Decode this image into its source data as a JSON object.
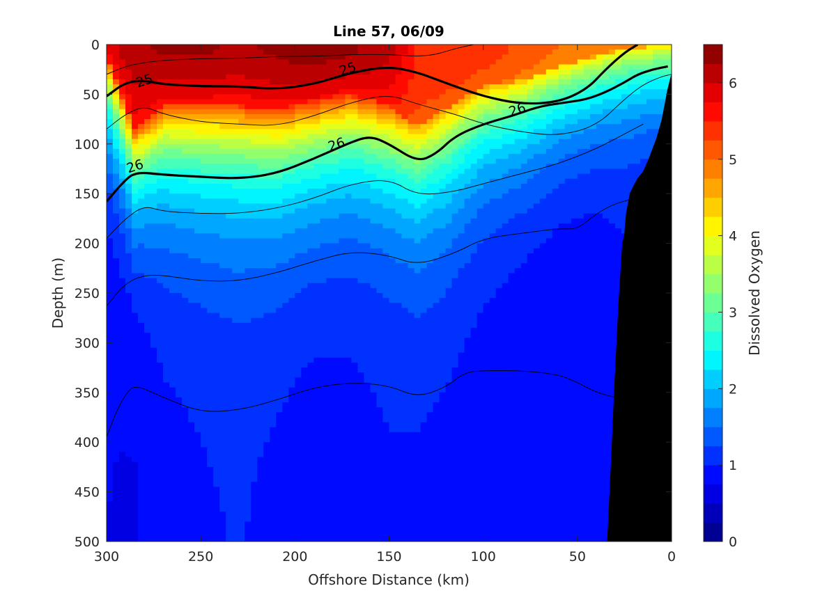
{
  "chart_data": {
    "type": "heatmap",
    "subtype": "filled-contour-section",
    "title": "Line 57, 06/09",
    "xlabel": "Offshore Distance (km)",
    "ylabel": "Depth (m)",
    "xlim": [
      300,
      0
    ],
    "ylim": [
      0,
      500
    ],
    "x_reversed": true,
    "y_reversed": true,
    "x_ticks": [
      300,
      250,
      200,
      150,
      100,
      50,
      0
    ],
    "y_ticks": [
      0,
      50,
      100,
      150,
      200,
      250,
      300,
      350,
      400,
      450,
      500
    ],
    "colorbar": {
      "label": "Dissolved Oxygen",
      "range": [
        0,
        6.5
      ],
      "ticks": [
        0,
        1,
        2,
        3,
        4,
        5,
        6
      ],
      "colormap": "jet",
      "level_step": 0.25
    },
    "oxygen_field": {
      "x": [
        300,
        285,
        270,
        250,
        230,
        210,
        190,
        170,
        150,
        135,
        120,
        100,
        80,
        60,
        40,
        25,
        10,
        0
      ],
      "z": [
        0,
        25,
        50,
        75,
        100,
        125,
        150,
        175,
        200,
        225,
        250,
        275,
        300,
        325,
        350,
        375,
        400,
        425,
        450,
        475,
        500
      ],
      "surface_oxygen": [
        5.9,
        6.2,
        6.3,
        6.3,
        6.2,
        6.3,
        6.4,
        6.3,
        6.1,
        5.5,
        5.5,
        5.4,
        5.2,
        5.0,
        4.9,
        4.8,
        4.8,
        4.8
      ],
      "oxycline_depth": [
        12,
        85,
        60,
        60,
        62,
        65,
        56,
        50,
        62,
        82,
        65,
        42,
        36,
        22,
        12,
        6,
        2,
        2
      ],
      "oxycline_scale": [
        55,
        60,
        65,
        68,
        70,
        70,
        68,
        66,
        66,
        70,
        70,
        62,
        58,
        55,
        50,
        48,
        45,
        45
      ],
      "deep_oxygen": [
        0.75,
        0.72,
        0.9,
        0.95,
        1.0,
        0.92,
        0.85,
        0.88,
        0.95,
        0.93,
        0.9,
        0.85,
        0.8,
        0.75,
        0.8,
        0.9,
        0.9,
        0.9
      ]
    },
    "density_contours": [
      {
        "sigma": 24.5,
        "x": [
          300,
          290,
          280,
          270,
          250,
          230,
          210,
          190,
          170,
          150,
          135,
          125,
          115,
          105
        ],
        "depth": [
          30,
          22,
          18,
          16,
          14,
          14,
          12,
          12,
          10,
          10,
          12,
          10,
          4,
          0
        ],
        "bold": false
      },
      {
        "sigma": 25,
        "labels_at": [
          [
            280,
            36
          ],
          [
            172,
            24
          ]
        ],
        "x": [
          300,
          290,
          280,
          270,
          250,
          230,
          210,
          190,
          170,
          150,
          135,
          125,
          115,
          100,
          80,
          60,
          45,
          35,
          25,
          18
        ],
        "depth": [
          52,
          38,
          36,
          40,
          42,
          42,
          45,
          40,
          28,
          22,
          28,
          35,
          42,
          52,
          60,
          58,
          45,
          25,
          8,
          0
        ],
        "bold": true
      },
      {
        "sigma": 25.5,
        "x": [
          300,
          290,
          280,
          270,
          250,
          230,
          210,
          190,
          170,
          150,
          135,
          115,
          100,
          80,
          60,
          40,
          25,
          15,
          5,
          0
        ],
        "depth": [
          85,
          70,
          62,
          70,
          78,
          80,
          82,
          72,
          58,
          50,
          60,
          70,
          80,
          88,
          92,
          82,
          55,
          40,
          32,
          30
        ],
        "bold": false
      },
      {
        "sigma": 26,
        "labels_at": [
          [
            285,
            122
          ],
          [
            178,
            100
          ],
          [
            82,
            65
          ]
        ],
        "x": [
          300,
          292,
          285,
          270,
          250,
          230,
          210,
          190,
          170,
          160,
          150,
          135,
          125,
          115,
          100,
          85,
          70,
          55,
          45,
          35,
          25,
          18,
          10,
          2
        ],
        "depth": [
          158,
          140,
          128,
          131,
          133,
          135,
          130,
          115,
          98,
          92,
          100,
          118,
          110,
          92,
          80,
          72,
          62,
          58,
          55,
          48,
          38,
          30,
          25,
          22
        ],
        "bold": true
      },
      {
        "sigma": 26.5,
        "x": [
          300,
          290,
          280,
          270,
          250,
          230,
          210,
          190,
          170,
          150,
          135,
          115,
          100,
          80,
          60,
          40,
          25,
          15
        ],
        "depth": [
          195,
          175,
          162,
          168,
          170,
          170,
          165,
          155,
          140,
          135,
          152,
          148,
          140,
          130,
          120,
          105,
          90,
          80
        ],
        "bold": false
      },
      {
        "sigma": 26.7,
        "x": [
          300,
          290,
          280,
          270,
          250,
          230,
          210,
          190,
          170,
          150,
          135,
          115,
          100,
          80,
          60,
          50,
          40,
          30,
          20
        ],
        "depth": [
          263,
          240,
          232,
          232,
          238,
          238,
          230,
          218,
          208,
          212,
          222,
          210,
          195,
          190,
          185,
          186,
          170,
          160,
          155
        ],
        "bold": false
      },
      {
        "sigma": 26.9,
        "x": [
          300,
          295,
          290,
          285,
          270,
          250,
          230,
          210,
          190,
          170,
          150,
          135,
          120,
          110,
          100,
          80,
          60,
          50,
          40,
          30
        ],
        "depth": [
          395,
          370,
          352,
          342,
          355,
          370,
          368,
          358,
          345,
          340,
          343,
          355,
          345,
          330,
          328,
          328,
          332,
          340,
          350,
          355
        ],
        "bold": false
      }
    ],
    "bottom_topography": {
      "x": [
        34,
        32,
        30,
        28,
        26,
        25,
        24,
        22,
        20,
        18,
        15,
        12,
        8,
        5,
        2,
        0
      ],
      "depth": [
        500,
        420,
        335,
        260,
        200,
        192,
        170,
        150,
        142,
        135,
        128,
        115,
        95,
        75,
        45,
        30
      ],
      "color": "#000000"
    }
  }
}
